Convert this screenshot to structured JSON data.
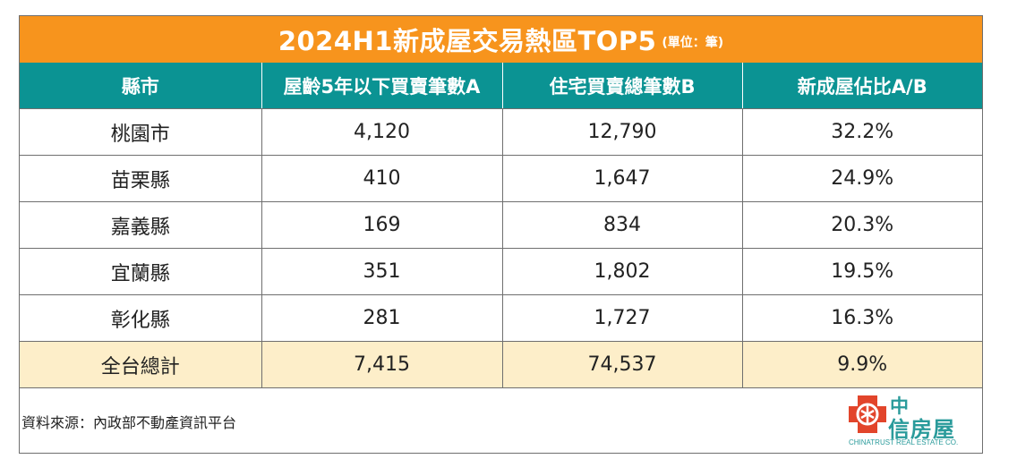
{
  "title": "2024H1新成屋交易熱區TOP5",
  "unit_note": "(單位：筆)",
  "colors": {
    "title_bg": "#f7941d",
    "header_bg": "#0b9393",
    "total_row_bg": "#fdeec9",
    "logo": "#2a9b9b"
  },
  "chart_data": {
    "type": "table",
    "title": "2024H1新成屋交易熱區TOP5",
    "unit": "(單位：筆)",
    "columns": [
      "縣市",
      "屋齡5年以下買賣筆數A",
      "住宅買賣總筆數B",
      "新成屋佔比A/B"
    ],
    "rows": [
      [
        "桃園市",
        "4,120",
        "12,790",
        "32.2%"
      ],
      [
        "苗栗縣",
        "410",
        "1,647",
        "24.9%"
      ],
      [
        "嘉義縣",
        "169",
        "834",
        "20.3%"
      ],
      [
        "宜蘭縣",
        "351",
        "1,802",
        "19.5%"
      ],
      [
        "彰化縣",
        "281",
        "1,727",
        "16.3%"
      ]
    ],
    "total": [
      "全台總計",
      "7,415",
      "74,537",
      "9.9%"
    ]
  },
  "source": "資料來源：內政部不動產資訊平台",
  "logo": {
    "line1": "中",
    "line2": "信房屋",
    "english": "CHINATRUST REAL ESTATE CO."
  }
}
